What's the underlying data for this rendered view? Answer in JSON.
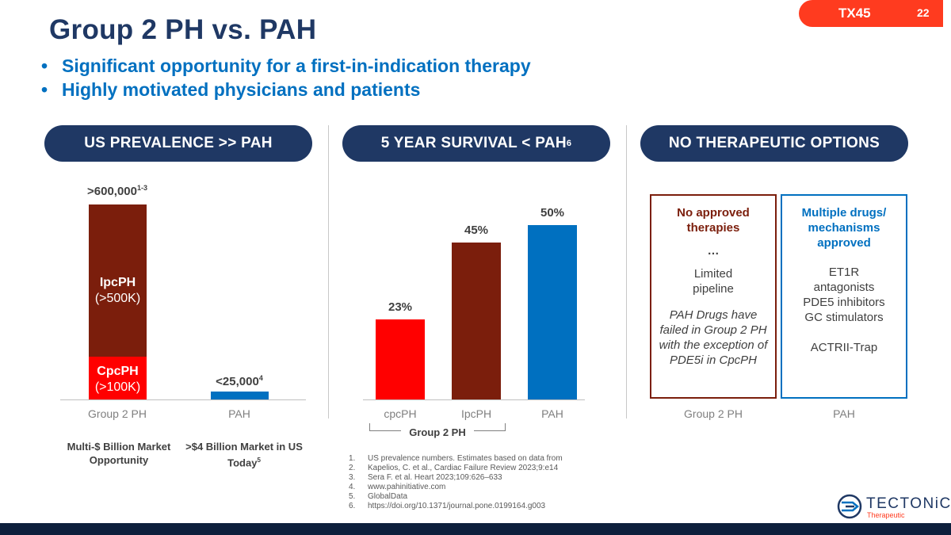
{
  "title": "Group 2 PH vs. PAH",
  "bullets": [
    "Significant opportunity for a first-in-indication therapy",
    "Highly motivated physicians and patients"
  ],
  "tag": {
    "label": "TX45",
    "page": "22"
  },
  "pills": {
    "prevalence": "US PREVALENCE >> PAH",
    "survival": "5 YEAR SURVIVAL < PAH",
    "survival_sup": "6",
    "options": "NO THERAPEUTIC OPTIONS"
  },
  "colors": {
    "navy": "#1f3864",
    "dark_red": "#7b1e0c",
    "red": "#ff0000",
    "blue": "#0070c0",
    "orange": "#ff3b1f"
  },
  "prevalence_chart": {
    "group2_total": ">600,000",
    "group2_total_sup": "1-3",
    "ipcph_name": "IpcPH",
    "ipcph_value": "(>500K)",
    "cpcph_name": "CpcPH",
    "cpcph_value": "(>100K)",
    "pah_value": "<25,000",
    "pah_sup": "4",
    "cat_group2": "Group 2 PH",
    "cat_pah": "PAH",
    "caption_group2": "Multi-$ Billion Market Opportunity",
    "caption_pah": ">$4 Billion Market in US Today",
    "caption_pah_sup": "5"
  },
  "chart_data": {
    "type": "bar",
    "title": "5 YEAR SURVIVAL < PAH",
    "categories": [
      "cpcPH",
      "IpcPH",
      "PAH"
    ],
    "values": [
      23,
      45,
      50
    ],
    "labels": [
      "23%",
      "45%",
      "50%"
    ],
    "group_label": "Group 2 PH",
    "ylim": [
      0,
      60
    ]
  },
  "options": {
    "left_head": "No approved therapies",
    "left_ellipsis": "…",
    "left_body": "Limited pipeline",
    "left_note": "PAH Drugs have failed in Group 2 PH with the exception of PDE5i in CpcPH",
    "right_head": "Multiple drugs/ mechanisms approved",
    "right_body1": "ET1R antagonists",
    "right_body2": "PDE5 inhibitors",
    "right_body3": "GC stimulators",
    "right_body4": "ACTRII-Trap",
    "cat_left": "Group 2 PH",
    "cat_right": "PAH"
  },
  "references": [
    {
      "n": "1.",
      "text": "US prevalence numbers. Estimates based on data from"
    },
    {
      "n": "2.",
      "text": "Kapelios, C. et al., Cardiac Failure Review 2023;9:e14"
    },
    {
      "n": "3.",
      "text": "Sera F. et al. Heart 2023;109:626–633"
    },
    {
      "n": "4.",
      "text": "www.pahinitiative.com"
    },
    {
      "n": "5.",
      "text": "GlobalData"
    },
    {
      "n": "6.",
      "text": "https://doi.org/10.1371/journal.pone.0199164.g003"
    }
  ],
  "logo": {
    "name": "TECTONiC",
    "sub": "Therapeutic"
  }
}
